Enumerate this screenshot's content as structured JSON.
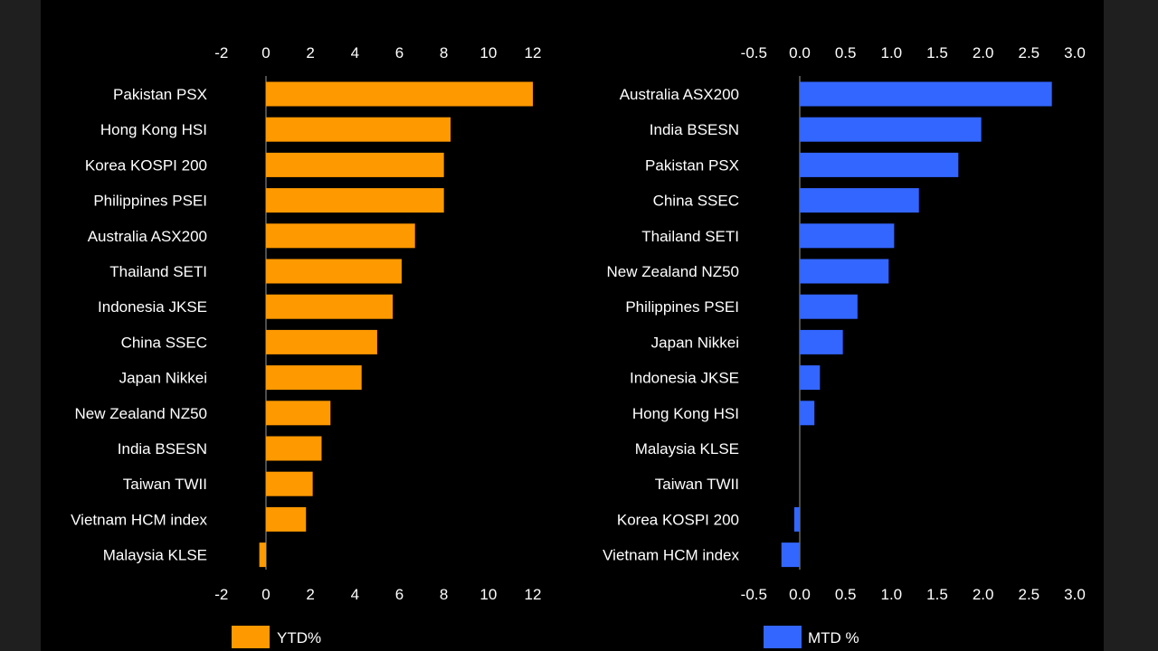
{
  "chart_data": [
    {
      "type": "bar",
      "orientation": "horizontal",
      "title": "",
      "xlabel": "",
      "ylabel": "",
      "xlim": [
        -2,
        12
      ],
      "ticks": [
        "-2",
        "0",
        "2",
        "4",
        "6",
        "8",
        "10",
        "12"
      ],
      "tick_values": [
        -2,
        0,
        2,
        4,
        6,
        8,
        10,
        12
      ],
      "color": "#ff9900",
      "legend": "YTD%",
      "categories": [
        "Pakistan PSX",
        "Hong Kong HSI",
        "Korea KOSPI 200",
        "Philippines PSEI",
        "Australia ASX200",
        "Thailand SETI",
        "Indonesia JKSE",
        "China SSEC",
        "Japan Nikkei",
        "New Zealand NZ50",
        "India BSESN",
        "Taiwan TWII",
        "Vietnam HCM index",
        "Malaysia KLSE"
      ],
      "values": [
        12.0,
        8.3,
        8.0,
        8.0,
        6.7,
        6.1,
        5.7,
        5.0,
        4.3,
        2.9,
        2.5,
        2.1,
        1.8,
        -0.3
      ]
    },
    {
      "type": "bar",
      "orientation": "horizontal",
      "title": "",
      "xlabel": "",
      "ylabel": "",
      "xlim": [
        -0.5,
        3.0
      ],
      "ticks": [
        "-0.5",
        "0.0",
        "0.5",
        "1.0",
        "1.5",
        "2.0",
        "2.5",
        "3.0"
      ],
      "tick_values": [
        -0.5,
        0.0,
        0.5,
        1.0,
        1.5,
        2.0,
        2.5,
        3.0
      ],
      "color": "#3366ff",
      "legend": "MTD %",
      "categories": [
        "Australia ASX200",
        "India BSESN",
        "Pakistan PSX",
        "China SSEC",
        "Thailand SETI",
        "New Zealand NZ50",
        "Philippines PSEI",
        "Japan Nikkei",
        "Indonesia JKSE",
        "Hong Kong HSI",
        "Malaysia KLSE",
        "Taiwan TWII",
        "Korea KOSPI 200",
        "Vietnam HCM index"
      ],
      "values": [
        2.75,
        1.98,
        1.73,
        1.3,
        1.03,
        0.97,
        0.63,
        0.47,
        0.22,
        0.16,
        0.0,
        0.0,
        -0.06,
        -0.2
      ]
    }
  ]
}
